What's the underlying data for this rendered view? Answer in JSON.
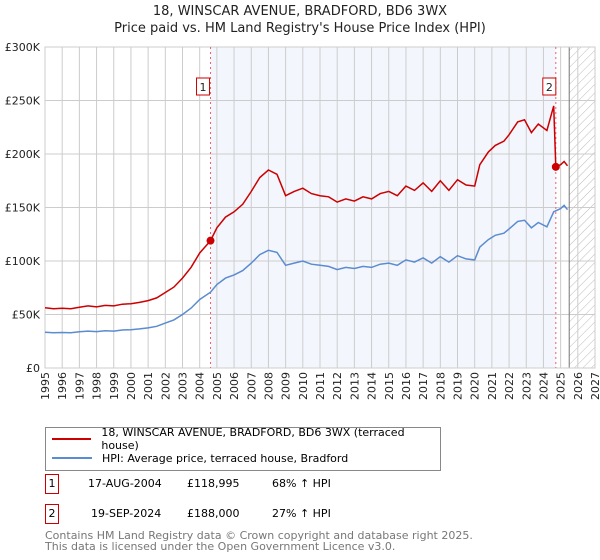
{
  "chart_data": {
    "type": "line",
    "title": "18, WINSCAR AVENUE, BRADFORD, BD6 3WX",
    "subtitle": "Price paid vs. HM Land Registry's House Price Index (HPI)",
    "xlim": [
      1995,
      2027
    ],
    "ylim": [
      0,
      300000
    ],
    "x_ticks": [
      "1995",
      "1996",
      "1997",
      "1998",
      "1999",
      "2000",
      "2001",
      "2002",
      "2003",
      "2004",
      "2005",
      "2006",
      "2007",
      "2008",
      "2009",
      "2010",
      "2011",
      "2012",
      "2013",
      "2014",
      "2015",
      "2016",
      "2017",
      "2018",
      "2019",
      "2020",
      "2021",
      "2022",
      "2023",
      "2024",
      "2025",
      "2026",
      "2027"
    ],
    "y_ticks": [
      {
        "v": 0,
        "label": "£0"
      },
      {
        "v": 50000,
        "label": "£50K"
      },
      {
        "v": 100000,
        "label": "£100K"
      },
      {
        "v": 150000,
        "label": "£150K"
      },
      {
        "v": 200000,
        "label": "£200K"
      },
      {
        "v": 250000,
        "label": "£250K"
      },
      {
        "v": 300000,
        "label": "£300K"
      }
    ],
    "grid": true,
    "shaded_range": [
      2004.63,
      2024.72
    ],
    "forecast_hatch_from": 2025.5,
    "series": [
      {
        "name": "18, WINSCAR AVENUE, BRADFORD, BD6 3WX (terraced house)",
        "color": "#cc0000",
        "x": [
          1995,
          1995.5,
          1996,
          1996.5,
          1997,
          1997.5,
          1998,
          1998.5,
          1999,
          1999.5,
          2000,
          2000.5,
          2001,
          2001.5,
          2002,
          2002.5,
          2003,
          2003.5,
          2004,
          2004.63,
          2005,
          2005.5,
          2006,
          2006.5,
          2007,
          2007.5,
          2008,
          2008.5,
          2009,
          2009.5,
          2010,
          2010.5,
          2011,
          2011.5,
          2012,
          2012.5,
          2013,
          2013.5,
          2014,
          2014.5,
          2015,
          2015.5,
          2016,
          2016.5,
          2017,
          2017.5,
          2018,
          2018.5,
          2019,
          2019.5,
          2020,
          2020.3,
          2020.8,
          2021.2,
          2021.7,
          2022,
          2022.5,
          2022.9,
          2023.3,
          2023.7,
          2024.2,
          2024.6,
          2024.72,
          2025,
          2025.2,
          2025.4
        ],
        "y": [
          56300,
          55400,
          55800,
          55400,
          56800,
          58000,
          57100,
          58500,
          58000,
          59600,
          60100,
          61300,
          63000,
          65500,
          70600,
          75600,
          84000,
          94100,
          107500,
          118995,
          131000,
          141000,
          146000,
          153000,
          165000,
          178000,
          185000,
          181000,
          161000,
          165000,
          168000,
          163000,
          161000,
          160000,
          155000,
          158000,
          156000,
          160000,
          158000,
          163000,
          165000,
          161000,
          170000,
          166000,
          173000,
          165000,
          175000,
          166000,
          176000,
          171000,
          170000,
          190000,
          202000,
          208000,
          212000,
          218000,
          230000,
          232000,
          220000,
          228000,
          222000,
          245000,
          188000,
          190000,
          193000,
          189000
        ]
      },
      {
        "name": "HPI: Average price, terraced house, Bradford",
        "color": "#5b8bd0",
        "x": [
          1995,
          1995.5,
          1996,
          1996.5,
          1997,
          1997.5,
          1998,
          1998.5,
          1999,
          1999.5,
          2000,
          2000.5,
          2001,
          2001.5,
          2002,
          2002.5,
          2003,
          2003.5,
          2004,
          2004.63,
          2005,
          2005.5,
          2006,
          2006.5,
          2007,
          2007.5,
          2008,
          2008.5,
          2009,
          2009.5,
          2010,
          2010.5,
          2011,
          2011.5,
          2012,
          2012.5,
          2013,
          2013.5,
          2014,
          2014.5,
          2015,
          2015.5,
          2016,
          2016.5,
          2017,
          2017.5,
          2018,
          2018.5,
          2019,
          2019.5,
          2020,
          2020.3,
          2020.8,
          2021.2,
          2021.7,
          2022,
          2022.5,
          2022.9,
          2023.3,
          2023.7,
          2024.2,
          2024.6,
          2025,
          2025.2,
          2025.4
        ],
        "y": [
          33500,
          33000,
          33200,
          33000,
          33800,
          34500,
          34000,
          34800,
          34500,
          35500,
          35800,
          36500,
          37500,
          39000,
          42000,
          45000,
          50000,
          56000,
          64000,
          70800,
          78000,
          84000,
          87000,
          91000,
          98000,
          106000,
          110000,
          108000,
          96000,
          98000,
          100000,
          97000,
          96000,
          95000,
          92000,
          94000,
          93000,
          95000,
          94000,
          97000,
          98000,
          96000,
          101000,
          99000,
          103000,
          98000,
          104000,
          99000,
          105000,
          102000,
          101000,
          113000,
          120000,
          124000,
          126000,
          130000,
          137000,
          138000,
          131000,
          136000,
          132000,
          146000,
          149000,
          152000,
          148000
        ]
      }
    ],
    "annotations": [
      {
        "label": "1",
        "x": 2004.63,
        "y": 118995
      },
      {
        "label": "2",
        "x": 2024.72,
        "y": 188000
      }
    ]
  },
  "legend": {
    "items": [
      {
        "label": "18, WINSCAR AVENUE, BRADFORD, BD6 3WX (terraced house)",
        "color": "#cc0000"
      },
      {
        "label": "HPI: Average price, terraced house, Bradford",
        "color": "#5b8bd0"
      }
    ]
  },
  "transactions": [
    {
      "num": "1",
      "date": "17-AUG-2004",
      "price": "£118,995",
      "hpi": "68% ↑ HPI"
    },
    {
      "num": "2",
      "date": "19-SEP-2024",
      "price": "£188,000",
      "hpi": "27% ↑ HPI"
    }
  ],
  "footer": {
    "line1": "Contains HM Land Registry data © Crown copyright and database right 2025.",
    "line2": "This data is licensed under the Open Government Licence v3.0."
  }
}
